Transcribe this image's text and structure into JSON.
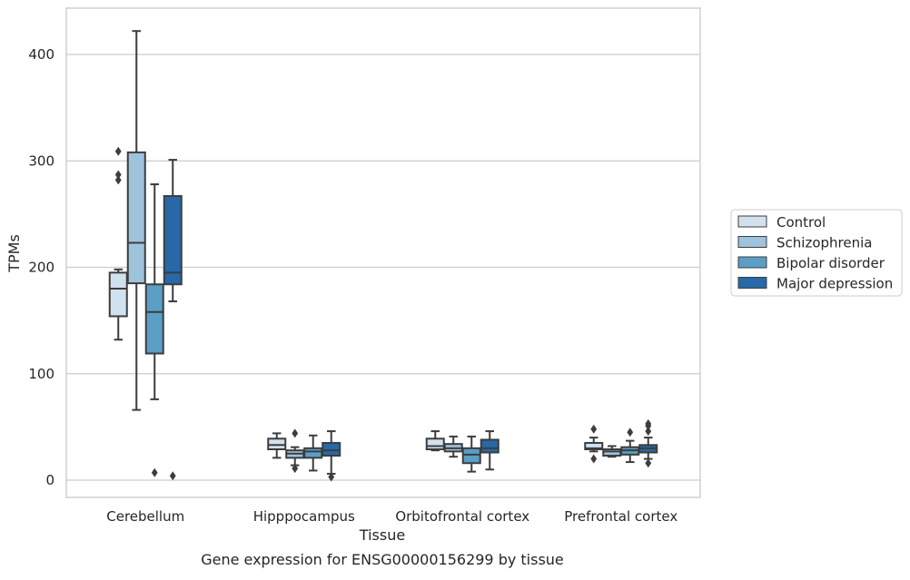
{
  "chart_data": {
    "type": "boxplot",
    "xlabel": "Tissue",
    "ylabel": "TPMs",
    "caption": "Gene expression for ENSG00000156299 by tissue",
    "ylim": [
      -15,
      440
    ],
    "yticks": [
      0,
      100,
      200,
      300,
      400
    ],
    "categories": [
      "Cerebellum",
      "Hipppocampus",
      "Orbitofrontal cortex",
      "Prefrontal cortex"
    ],
    "grid": true,
    "legend_position": "right",
    "series": [
      {
        "name": "Control",
        "color": "#d1e1ee",
        "boxes": [
          {
            "min": 132,
            "q1": 154,
            "median": 180,
            "q3": 195,
            "max": 198,
            "outliers": [
              282,
              287,
              309
            ]
          },
          {
            "min": 21,
            "q1": 29,
            "median": 33,
            "q3": 39,
            "max": 44,
            "outliers": []
          },
          {
            "min": 28,
            "q1": 29,
            "median": 32,
            "q3": 39,
            "max": 46,
            "outliers": []
          },
          {
            "min": 27,
            "q1": 29,
            "median": 30,
            "q3": 35,
            "max": 40,
            "outliers": [
              20,
              48
            ]
          }
        ]
      },
      {
        "name": "Schizophrenia",
        "color": "#9dc3dd",
        "boxes": [
          {
            "min": 66,
            "q1": 185,
            "median": 223,
            "q3": 308,
            "max": 422,
            "outliers": []
          },
          {
            "min": 14,
            "q1": 21,
            "median": 25,
            "q3": 28,
            "max": 31,
            "outliers": [
              11,
              44
            ]
          },
          {
            "min": 22,
            "q1": 27,
            "median": 30,
            "q3": 34,
            "max": 41,
            "outliers": []
          },
          {
            "min": 22,
            "q1": 23,
            "median": 27,
            "q3": 29,
            "max": 32,
            "outliers": []
          }
        ]
      },
      {
        "name": "Bipolar disorder",
        "color": "#5b9ec6",
        "boxes": [
          {
            "min": 76,
            "q1": 119,
            "median": 158,
            "q3": 184,
            "max": 278,
            "outliers": [
              7
            ]
          },
          {
            "min": 9,
            "q1": 21,
            "median": 27,
            "q3": 30,
            "max": 42,
            "outliers": []
          },
          {
            "min": 8,
            "q1": 16,
            "median": 24,
            "q3": 30,
            "max": 41,
            "outliers": []
          },
          {
            "min": 17,
            "q1": 24,
            "median": 28,
            "q3": 31,
            "max": 37,
            "outliers": [
              45
            ]
          }
        ]
      },
      {
        "name": "Major depression",
        "color": "#2668a8",
        "boxes": [
          {
            "min": 168,
            "q1": 184,
            "median": 195,
            "q3": 267,
            "max": 301,
            "outliers": [
              4
            ]
          },
          {
            "min": 6,
            "q1": 23,
            "median": 28,
            "q3": 35,
            "max": 46,
            "outliers": [
              3
            ]
          },
          {
            "min": 10,
            "q1": 26,
            "median": 30,
            "q3": 38,
            "max": 46,
            "outliers": []
          },
          {
            "min": 20,
            "q1": 26,
            "median": 30,
            "q3": 33,
            "max": 40,
            "outliers": [
              16,
              46,
              51,
              53
            ]
          }
        ]
      }
    ]
  }
}
